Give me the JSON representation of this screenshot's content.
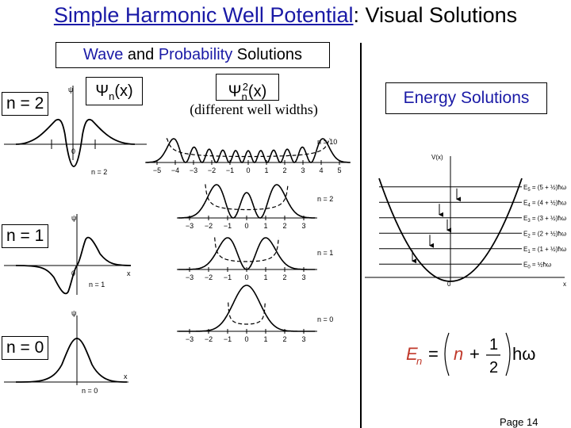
{
  "title": {
    "part1": "Simple Harmonic Well Potential",
    "part2": ": Visual Solutions"
  },
  "wave_box": {
    "part1": "Wave",
    "part2": " and ",
    "part3": "Probability",
    "part4": " Solutions"
  },
  "energy_box": {
    "label": "Energy Solutions"
  },
  "psi_label": {
    "symbol": "Ψ",
    "sub": "n",
    "arg": "(x)"
  },
  "psi2_label": {
    "symbol": "Ψ",
    "sub": "n",
    "sup": "2",
    "arg": "(x)"
  },
  "widths_note": "(different well widths)",
  "level_labels": [
    "n = 2",
    "n = 1",
    "n = 0"
  ],
  "wave_panels": {
    "axis_psi": "ψ",
    "axis_x": "x",
    "origin": "0",
    "n_labels": [
      "n = 2",
      "n = 1",
      "n = 0"
    ]
  },
  "prob_panels": {
    "n_labels": [
      "n = 10",
      "n = 2",
      "n = 1",
      "n = 0"
    ],
    "ticks_wide": [
      "−5",
      "−4",
      "−3",
      "−2",
      "−1",
      "0",
      "1",
      "2",
      "3",
      "4",
      "5"
    ],
    "ticks_narrow": [
      "−3",
      "−2",
      "−1",
      "0",
      "1",
      "2",
      "3"
    ]
  },
  "energy_diagram": {
    "y_label": "V(x)",
    "x_label": "x",
    "origin": "0",
    "levels": [
      {
        "lhs": "E",
        "sub": "5",
        "rhs": " = (5 + ½)ħω"
      },
      {
        "lhs": "E",
        "sub": "4",
        "rhs": " = (4 + ½)ħω"
      },
      {
        "lhs": "E",
        "sub": "3",
        "rhs": " = (3 + ½)ħω"
      },
      {
        "lhs": "E",
        "sub": "2",
        "rhs": " = (2 + ½)ħω"
      },
      {
        "lhs": "E",
        "sub": "1",
        "rhs": " = (1 + ½)ħω"
      },
      {
        "lhs": "E",
        "sub": "0",
        "rhs": " = ½ħω"
      }
    ]
  },
  "formula": {
    "lhs": "E",
    "sub": "n",
    "eq": "=",
    "n": "n",
    "plus": "+",
    "num": "1",
    "den": "2",
    "hbar_omega": "hω"
  },
  "page_number": "Page 14",
  "colors": {
    "title_blue": "#1a1aa6",
    "formula_red": "#c0392b"
  }
}
